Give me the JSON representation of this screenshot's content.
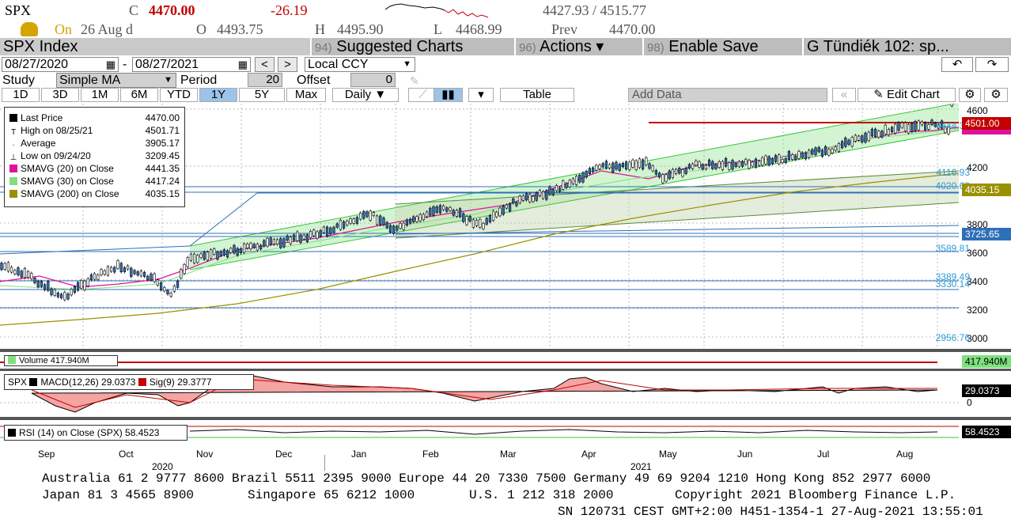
{
  "quote": {
    "ticker": "SPX",
    "close_prefix": "C",
    "close": "4470.00",
    "change": "-26.19",
    "range": "4427.93 / 4515.77",
    "on_label": "On",
    "date": "26 Aug d",
    "open_prefix": "O",
    "open": "4493.75",
    "high_prefix": "H",
    "high": "4495.90",
    "low_prefix": "L",
    "low": "4468.99",
    "prev_prefix": "Prev",
    "prev": "4470.00"
  },
  "toolbar": {
    "security": "SPX Index",
    "suggested_num": "94)",
    "suggested": "Suggested Charts",
    "actions_num": "96)",
    "actions": "Actions ▾",
    "enable_num": "98)",
    "enable": "Enable Save",
    "user": "G Tündiék 102: sp..."
  },
  "controls": {
    "date_from": "08/27/2020",
    "date_to": "08/27/2021",
    "ccy": "Local CCY",
    "study_label": "Study",
    "study": "Simple MA",
    "period_label": "Period",
    "period": "20",
    "offset_label": "Offset",
    "offset": "0"
  },
  "tabs": [
    "1D",
    "3D",
    "1M",
    "6M",
    "YTD",
    "1Y",
    "5Y",
    "Max"
  ],
  "selected_tab": "1Y",
  "tab_extras": {
    "daily": "Daily ▼",
    "table": "Table",
    "add_data": "Add Data",
    "edit_chart": "Edit Chart"
  },
  "legend": [
    {
      "label": "Last Price",
      "value": "4470.00",
      "color": "#000000"
    },
    {
      "label": "High on 08/25/21",
      "value": "4501.71",
      "color": ""
    },
    {
      "label": "Average",
      "value": "3905.17",
      "color": ""
    },
    {
      "label": "Low on 09/24/20",
      "value": "3209.45",
      "color": ""
    },
    {
      "label": "SMAVG (20)  on Close",
      "value": "4441.35",
      "color": "#e0129b"
    },
    {
      "label": "SMAVG (30)  on Close",
      "value": "4417.24",
      "color": "#7fe07f"
    },
    {
      "label": "SMAVG (200)  on Close",
      "value": "4035.15",
      "color": "#9a9000"
    }
  ],
  "y_axis": [
    "4600",
    "4200",
    "3800",
    "3600",
    "3400",
    "3200",
    "3000"
  ],
  "level_labels": [
    "4501.00",
    "4035.15",
    "3725.65"
  ],
  "levels": [
    "4116.93",
    "4020.62",
    "3589.81",
    "3389.49",
    "3330.14",
    "2956.76"
  ],
  "tags": {
    "top": "4444.35"
  },
  "months": [
    "Sep",
    "Oct",
    "Nov",
    "Dec",
    "Jan",
    "Feb",
    "Mar",
    "Apr",
    "May",
    "Jun",
    "Jul",
    "Aug"
  ],
  "years": [
    "2020",
    "2021"
  ],
  "volume": {
    "label": "Volume  417.940M",
    "value": "417.940M"
  },
  "macd": {
    "ticker": "SPX",
    "macd": "MACD(12,26)  29.0373",
    "sig": "Sig(9)  29.3777",
    "value": "29.0373",
    "zero": "0"
  },
  "rsi": {
    "label": "RSI (14)  on Close (SPX) 58.4523",
    "value": "58.4523"
  },
  "footer": {
    "line1": "Australia 61 2 9777 8600 Brazil 5511 2395 9000 Europe 44 20 7330 7500 Germany 49 69 9204 1210 Hong Kong 852 2977 6000",
    "line2a": "Japan 81 3 4565 8900",
    "line2b": "Singapore 65 6212 1000",
    "line2c": "U.S. 1 212 318 2000",
    "line2d": "Copyright 2021 Bloomberg Finance L.P.",
    "line3": "SN 120731 CEST GMT+2:00 H451-1354-1 27-Aug-2021 13:55:01"
  },
  "colors": {
    "accent_red": "#c40000",
    "amber": "#d4a400",
    "channel_green": "#7fe07f",
    "sma200": "#9a9000",
    "level_blue": "#2f9bd6"
  }
}
